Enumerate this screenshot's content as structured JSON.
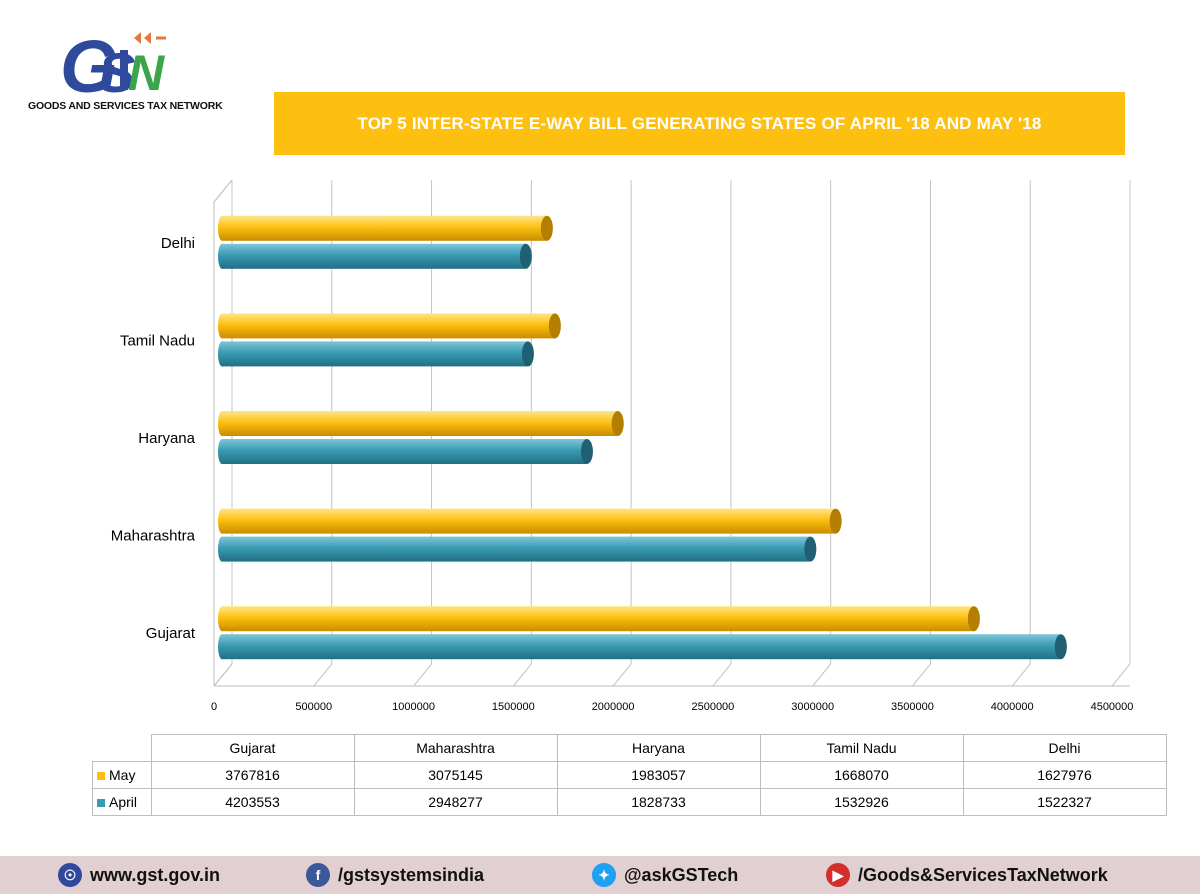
{
  "header": {
    "logo_text": "GSTN",
    "logo_subtitle": "GOODS AND SERVICES TAX NETWORK",
    "title": "TOP 5 INTER-STATE E-WAY BILL GENERATING STATES OF APRIL '18 AND MAY '18"
  },
  "colors": {
    "may": "#fdc010",
    "april": "#3a9bb3",
    "accent_banner": "#fdc010",
    "footer_bg": "#e2cfd2"
  },
  "chart_data": {
    "type": "bar",
    "orientation": "horizontal",
    "categories": [
      "Gujarat",
      "Maharashtra",
      "Haryana",
      "Tamil Nadu",
      "Delhi"
    ],
    "series": [
      {
        "name": "May",
        "values": [
          3767816,
          3075145,
          1983057,
          1668070,
          1627976
        ]
      },
      {
        "name": "April",
        "values": [
          4203553,
          2948277,
          1828733,
          1532926,
          1522327
        ]
      }
    ],
    "xlim": [
      0,
      4500000
    ],
    "x_ticks": [
      "0",
      "500000",
      "1000000",
      "1500000",
      "2000000",
      "2500000",
      "3000000",
      "3500000",
      "4000000",
      "4500000"
    ],
    "grid": true,
    "title": "TOP 5 INTER-STATE E-WAY BILL GENERATING STATES OF APRIL '18 AND MAY '18"
  },
  "table": {
    "headers": [
      "Gujarat",
      "Maharashtra",
      "Haryana",
      "Tamil Nadu",
      "Delhi"
    ],
    "rows": [
      {
        "label": "May",
        "values": [
          "3767816",
          "3075145",
          "1983057",
          "1668070",
          "1627976"
        ]
      },
      {
        "label": "April",
        "values": [
          "4203553",
          "2948277",
          "1828733",
          "1532926",
          "1522327"
        ]
      }
    ]
  },
  "footer": {
    "website": "www.gst.gov.in",
    "facebook": "/gstsystemsindia",
    "twitter": "@askGSTech",
    "youtube": "/Goods&ServicesTaxNetwork",
    "website_icon": "globe-icon",
    "facebook_icon": "facebook-icon",
    "twitter_icon": "twitter-icon",
    "youtube_icon": "youtube-icon"
  }
}
